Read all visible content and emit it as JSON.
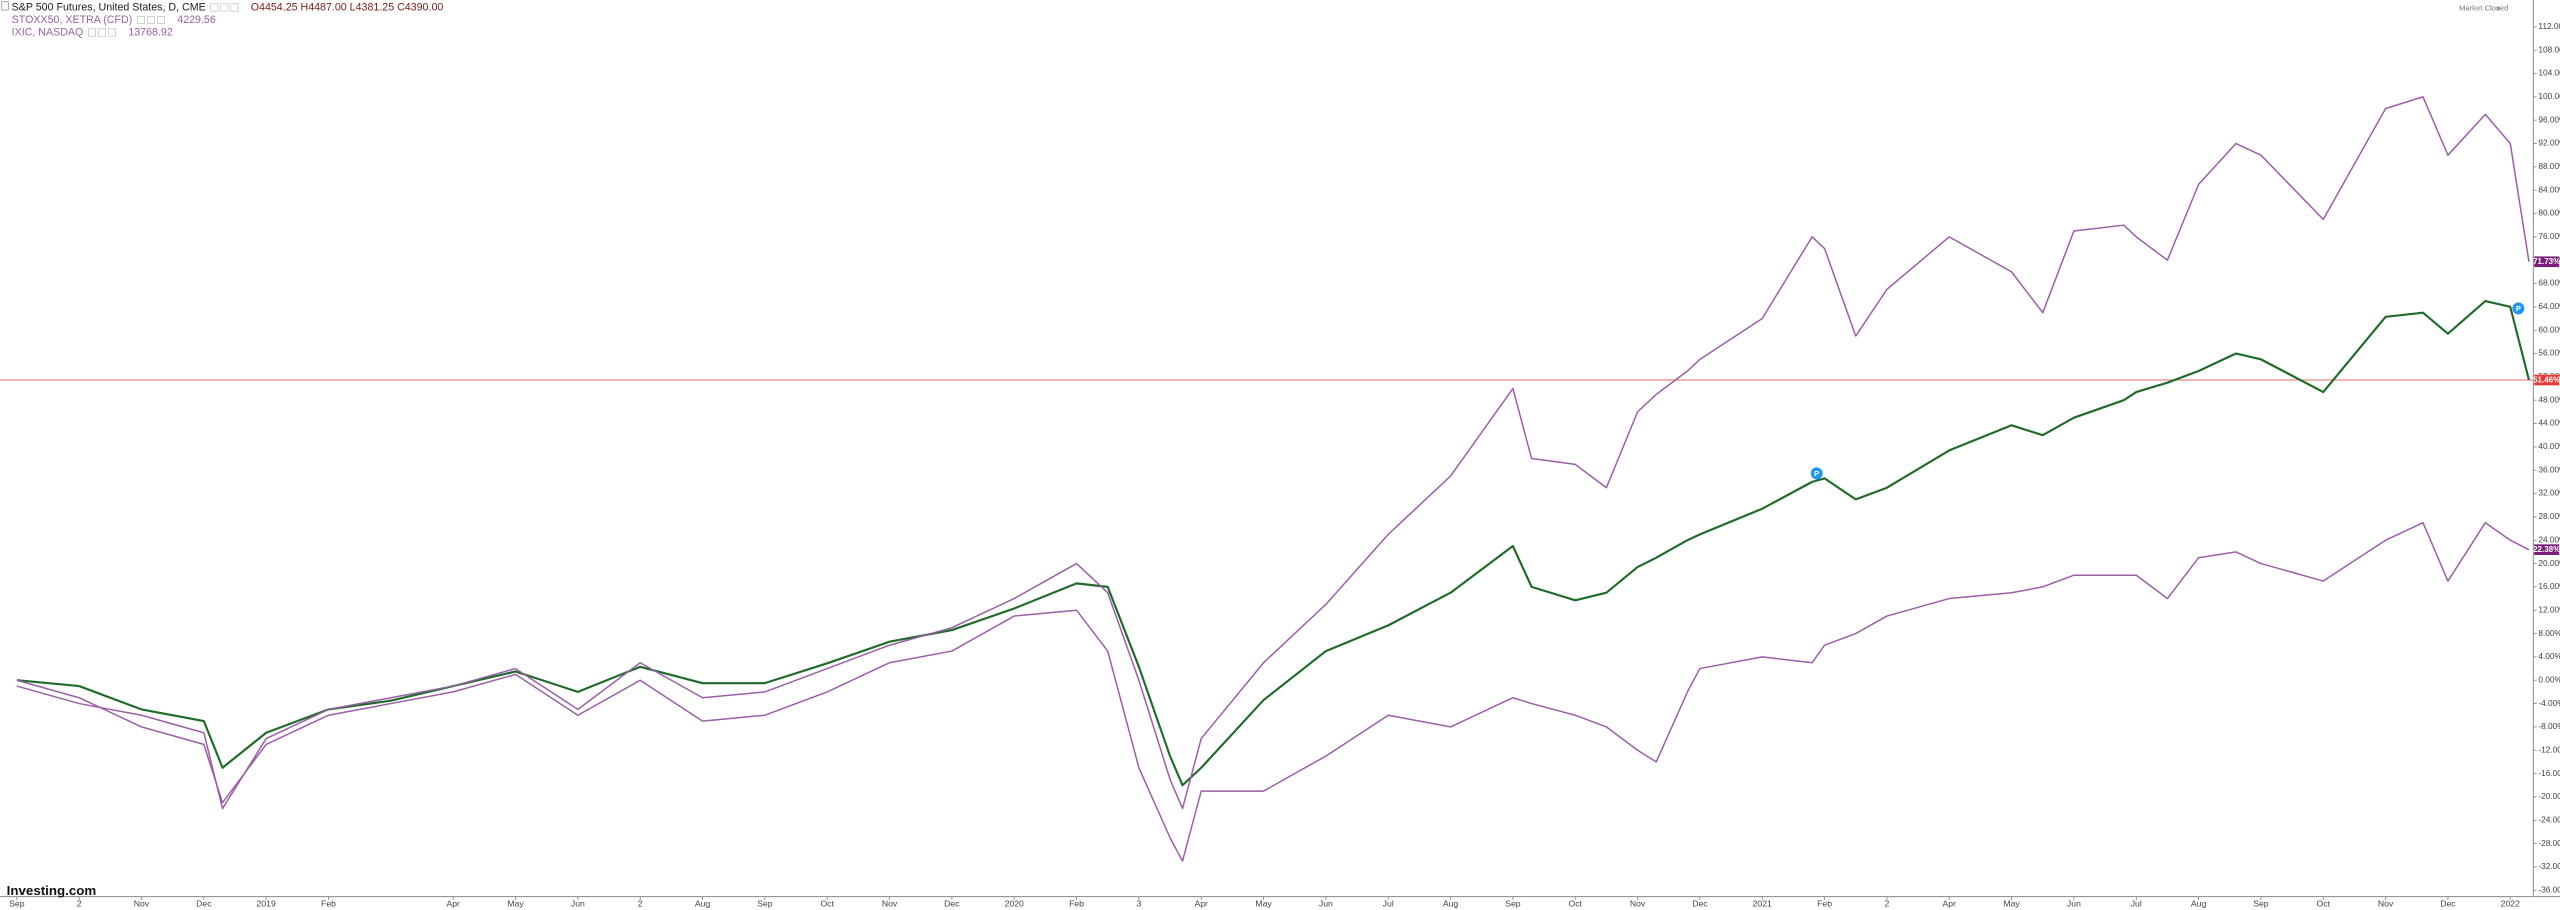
{
  "chart_data": {
    "type": "line",
    "status": "Market Closed",
    "brand": "Investing.com",
    "xlim": [
      -0.27,
      40.37
    ],
    "ylim": [
      -37.1,
      116.6
    ],
    "xticks": [
      {
        "value": 0,
        "label": "Sep"
      },
      {
        "value": 1,
        "label": "2"
      },
      {
        "value": 2,
        "label": "Nov"
      },
      {
        "value": 3,
        "label": "Dec"
      },
      {
        "value": 4,
        "label": "2019"
      },
      {
        "value": 5,
        "label": "Feb"
      },
      {
        "value": 7,
        "label": "Apr"
      },
      {
        "value": 8,
        "label": "May"
      },
      {
        "value": 9,
        "label": "Jun"
      },
      {
        "value": 10,
        "label": "2"
      },
      {
        "value": 11,
        "label": "Aug"
      },
      {
        "value": 12,
        "label": "Sep"
      },
      {
        "value": 13,
        "label": "Oct"
      },
      {
        "value": 14,
        "label": "Nov"
      },
      {
        "value": 15,
        "label": "Dec"
      },
      {
        "value": 16,
        "label": "2020"
      },
      {
        "value": 17,
        "label": "Feb"
      },
      {
        "value": 18,
        "label": "3"
      },
      {
        "value": 19,
        "label": "Apr"
      },
      {
        "value": 20,
        "label": "May"
      },
      {
        "value": 21,
        "label": "Jun"
      },
      {
        "value": 22,
        "label": "Jul"
      },
      {
        "value": 23,
        "label": "Aug"
      },
      {
        "value": 24,
        "label": "Sep"
      },
      {
        "value": 25,
        "label": "Oct"
      },
      {
        "value": 26,
        "label": "Nov"
      },
      {
        "value": 27,
        "label": "Dec"
      },
      {
        "value": 28,
        "label": "2021"
      },
      {
        "value": 29,
        "label": "Feb"
      },
      {
        "value": 30,
        "label": "2"
      },
      {
        "value": 31,
        "label": "Apr"
      },
      {
        "value": 32,
        "label": "May"
      },
      {
        "value": 33,
        "label": "Jun"
      },
      {
        "value": 34,
        "label": "Jul"
      },
      {
        "value": 35,
        "label": "Aug"
      },
      {
        "value": 36,
        "label": "Sep"
      },
      {
        "value": 37,
        "label": "Oct"
      },
      {
        "value": 38,
        "label": "Nov"
      },
      {
        "value": 39,
        "label": "Dec"
      },
      {
        "value": 40,
        "label": "2022"
      }
    ],
    "yticks": [
      {
        "value": 112,
        "label": "112.00%"
      },
      {
        "value": 108,
        "label": "108.00%"
      },
      {
        "value": 104,
        "label": "104.00%"
      },
      {
        "value": 100,
        "label": "100.00%"
      },
      {
        "value": 96,
        "label": "96.00%"
      },
      {
        "value": 92,
        "label": "92.00%"
      },
      {
        "value": 88,
        "label": "88.00%"
      },
      {
        "value": 84,
        "label": "84.00%"
      },
      {
        "value": 80,
        "label": "80.00%"
      },
      {
        "value": 76,
        "label": "76.00%"
      },
      {
        "value": 72,
        "label": "72.00%"
      },
      {
        "value": 68,
        "label": "68.00%"
      },
      {
        "value": 64,
        "label": "64.00%"
      },
      {
        "value": 60,
        "label": "60.00%"
      },
      {
        "value": 56,
        "label": "56.00%"
      },
      {
        "value": 52,
        "label": "52.00%"
      },
      {
        "value": 48,
        "label": "48.00%"
      },
      {
        "value": 44,
        "label": "44.00%"
      },
      {
        "value": 40,
        "label": "40.00%"
      },
      {
        "value": 36,
        "label": "36.00%"
      },
      {
        "value": 32,
        "label": "32.00%"
      },
      {
        "value": 28,
        "label": "28.00%"
      },
      {
        "value": 24,
        "label": "24.00%"
      },
      {
        "value": 20,
        "label": "20.00%"
      },
      {
        "value": 16,
        "label": "16.00%"
      },
      {
        "value": 12,
        "label": "12.00%"
      },
      {
        "value": 8,
        "label": "8.00%"
      },
      {
        "value": 4,
        "label": "4.00%"
      },
      {
        "value": 0,
        "label": "0.00%"
      },
      {
        "value": -4,
        "label": "-4.00%"
      },
      {
        "value": -8,
        "label": "-8.00%"
      },
      {
        "value": -12,
        "label": "-12.00%"
      },
      {
        "value": -16,
        "label": "-16.00%"
      },
      {
        "value": -20,
        "label": "-20.00%"
      },
      {
        "value": -24,
        "label": "-24.00%"
      },
      {
        "value": -28,
        "label": "-28.00%"
      },
      {
        "value": -32,
        "label": "-32.00%"
      },
      {
        "value": -36,
        "label": "-36.00%"
      }
    ],
    "x": [
      0,
      1,
      2,
      3,
      3.3,
      4,
      5,
      6,
      7,
      8,
      9,
      10,
      11,
      12,
      13,
      14,
      15,
      16,
      17,
      17.5,
      18,
      18.5,
      18.7,
      19,
      20,
      21,
      22,
      23,
      24,
      24.3,
      25,
      25.5,
      26,
      26.3,
      26.8,
      27,
      28,
      28.8,
      29,
      29.5,
      30,
      31,
      32,
      32.5,
      33,
      33.8,
      34,
      34.5,
      35,
      35.6,
      36,
      37,
      38,
      38.6,
      39,
      39.6,
      40,
      40.3
    ],
    "series": [
      {
        "name": "S&P 500 Futures, United States, D, CME",
        "quote": "O4454.25 H4487.00 L4381.25 C4390.00",
        "color": "#1f6b2a",
        "label_color": "#e53935",
        "last_label": "51.46%",
        "values": [
          0,
          -1,
          -5,
          -7,
          -15,
          -9,
          -5,
          -3.5,
          -1,
          1.5,
          -2,
          2.3,
          -0.5,
          -0.5,
          2.9,
          6.6,
          8.6,
          12.3,
          16.6,
          16,
          2.3,
          -13,
          -18,
          -15,
          -3.4,
          5,
          9.4,
          15,
          23,
          16,
          13.7,
          15,
          19.4,
          21,
          24,
          25,
          29.4,
          34,
          34.6,
          31,
          33,
          39.4,
          43.7,
          42,
          45,
          48,
          49.4,
          51,
          53,
          56,
          55,
          49.4,
          62.3,
          63,
          59.4,
          65,
          64,
          51.46
        ]
      },
      {
        "name": "STOXX50, XETRA (CFD)",
        "quote": "4229.56",
        "color": "#9b5fa8",
        "label_color": "#7b1e7a",
        "last_label": "22.38%",
        "values": [
          0,
          -3,
          -8,
          -11,
          -21,
          -11,
          -6,
          -4,
          -2,
          1,
          -6,
          0,
          -7,
          -6,
          -2,
          3,
          5,
          11,
          12,
          5,
          -15,
          -27,
          -31,
          -19,
          -19,
          -13,
          -6,
          -8,
          -3,
          -4,
          -6,
          -8,
          -12,
          -14,
          -2,
          2,
          4,
          3,
          6,
          8,
          11,
          14,
          15,
          16,
          18,
          18,
          18,
          14,
          21,
          22,
          20,
          17,
          24,
          27,
          17,
          27,
          24,
          22.38
        ]
      },
      {
        "name": "IXIC, NASDAQ",
        "quote": "13768.92",
        "color": "#9b5fa8",
        "label_color": "#7b1e7a",
        "last_label": "71.73%",
        "values": [
          -1,
          -4,
          -6,
          -9,
          -22,
          -10,
          -5,
          -3,
          -1,
          2,
          -5,
          3,
          -3,
          -2,
          2,
          6,
          9,
          14,
          20,
          15,
          0,
          -17,
          -22,
          -10,
          3,
          13,
          25,
          35,
          50,
          38,
          37,
          33,
          46,
          49,
          53,
          55,
          62,
          76,
          74,
          59,
          67,
          76,
          70,
          63,
          77,
          78,
          76,
          72,
          85,
          92,
          90,
          79,
          98,
          100,
          90,
          97,
          92,
          71.73
        ]
      }
    ]
  }
}
